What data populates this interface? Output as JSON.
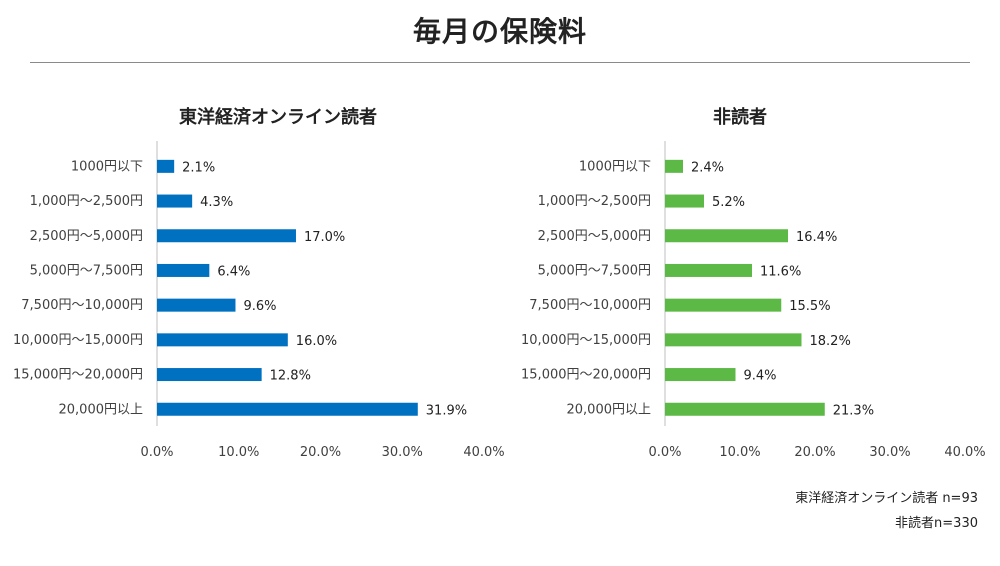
{
  "page": {
    "title": "毎月の保険料",
    "notes": [
      "東洋経済オンライン読者 n=93",
      "非読者n=330"
    ]
  },
  "colors": {
    "readers": "#0070c0",
    "nonreaders": "#5cb946",
    "axis": "#bfbfbf",
    "text": "#404040"
  },
  "chart_data": [
    {
      "type": "bar",
      "orientation": "horizontal",
      "title": "東洋経済オンライン読者",
      "categories": [
        "1000円以下",
        "1,000円〜2,500円",
        "2,500円〜5,000円",
        "5,000円〜7,500円",
        "7,500円〜10,000円",
        "10,000円〜15,000円",
        "15,000円〜20,000円",
        "20,000円以上"
      ],
      "values": [
        2.1,
        4.3,
        17.0,
        6.4,
        9.6,
        16.0,
        12.8,
        31.9
      ],
      "value_labels": [
        "2.1%",
        "4.3%",
        "17.0%",
        "6.4%",
        "9.6%",
        "16.0%",
        "12.8%",
        "31.9%"
      ],
      "xlim": [
        0,
        40
      ],
      "xticks": [
        "0.0%",
        "10.0%",
        "20.0%",
        "30.0%",
        "40.0%"
      ],
      "grid": false,
      "color": "#0070c0"
    },
    {
      "type": "bar",
      "orientation": "horizontal",
      "title": "非読者",
      "categories": [
        "1000円以下",
        "1,000円〜2,500円",
        "2,500円〜5,000円",
        "5,000円〜7,500円",
        "7,500円〜10,000円",
        "10,000円〜15,000円",
        "15,000円〜20,000円",
        "20,000円以上"
      ],
      "values": [
        2.4,
        5.2,
        16.4,
        11.6,
        15.5,
        18.2,
        9.4,
        21.3
      ],
      "value_labels": [
        "2.4%",
        "5.2%",
        "16.4%",
        "11.6%",
        "15.5%",
        "18.2%",
        "9.4%",
        "21.3%"
      ],
      "xlim": [
        0,
        40
      ],
      "xticks": [
        "0.0%",
        "10.0%",
        "20.0%",
        "30.0%",
        "40.0%"
      ],
      "grid": false,
      "color": "#5cb946"
    }
  ]
}
